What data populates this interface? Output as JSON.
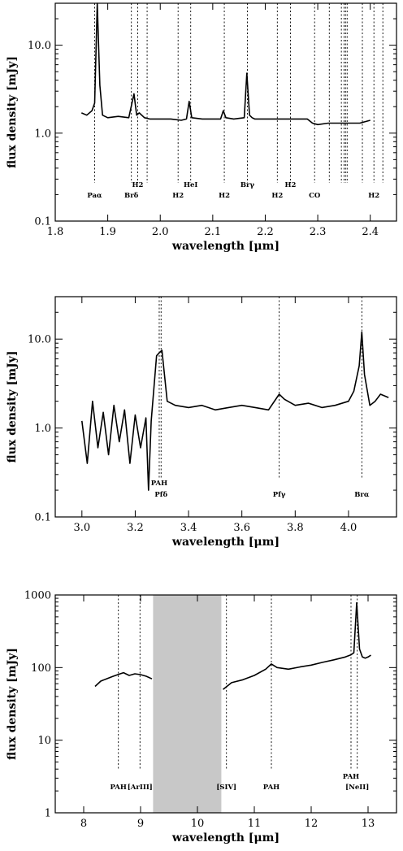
{
  "chart_data": [
    {
      "type": "line",
      "xlabel": "wavelength [μm]",
      "ylabel": "flux density [mJy]",
      "xlim": [
        1.8,
        2.45
      ],
      "ylim": [
        0.1,
        30
      ],
      "yscale": "log",
      "xticks": [
        1.8,
        1.9,
        2.0,
        2.1,
        2.2,
        2.3,
        2.4
      ],
      "xtick_labels": [
        "1.8",
        "1.9",
        "2.0",
        "2.1",
        "2.2",
        "2.3",
        "2.4"
      ],
      "yticks": [
        0.1,
        1,
        10
      ],
      "ytick_labels": [
        "0.1",
        "1.0",
        "10.0"
      ],
      "lines": [
        {
          "x": 1.875,
          "label": "Paα",
          "row": 1
        },
        {
          "x": 1.945,
          "label": "Brδ",
          "row": 1
        },
        {
          "x": 1.957,
          "label": "H2",
          "row": 0
        },
        {
          "x": 1.975,
          "label": "",
          "row": 0
        },
        {
          "x": 2.034,
          "label": "H2",
          "row": 1
        },
        {
          "x": 2.058,
          "label": "HeI",
          "row": 0
        },
        {
          "x": 2.122,
          "label": "H2",
          "row": 1
        },
        {
          "x": 2.166,
          "label": "Brγ",
          "row": 0
        },
        {
          "x": 2.223,
          "label": "H2",
          "row": 1
        },
        {
          "x": 2.248,
          "label": "H2",
          "row": 0
        },
        {
          "x": 2.294,
          "label": "CO",
          "row": 1
        },
        {
          "x": 2.322,
          "label": "",
          "row": 0
        },
        {
          "x": 2.345,
          "label": "",
          "row": 0
        },
        {
          "x": 2.35,
          "label": "",
          "row": 0
        },
        {
          "x": 2.353,
          "label": "",
          "row": 0
        },
        {
          "x": 2.356,
          "label": "",
          "row": 0
        },
        {
          "x": 2.385,
          "label": "",
          "row": 0
        },
        {
          "x": 2.407,
          "label": "H2",
          "row": 1
        },
        {
          "x": 2.424,
          "label": "",
          "row": 0
        }
      ],
      "series": [
        {
          "x": [
            1.85,
            1.86,
            1.87,
            1.875,
            1.88,
            1.885,
            1.89,
            1.9,
            1.92,
            1.94,
            1.95,
            1.955,
            1.96,
            1.97,
            1.98,
            2.0,
            2.02,
            2.04,
            2.05,
            2.055,
            2.06,
            2.08,
            2.1,
            2.115,
            2.12,
            2.125,
            2.14,
            2.16,
            2.165,
            2.17,
            2.175,
            2.18,
            2.2,
            2.22,
            2.25,
            2.28,
            2.29,
            2.3,
            2.32,
            2.34,
            2.36,
            2.38,
            2.4
          ],
          "y": [
            1.7,
            1.6,
            1.8,
            2.2,
            30,
            3.5,
            1.6,
            1.5,
            1.55,
            1.5,
            2.8,
            1.6,
            1.7,
            1.5,
            1.45,
            1.45,
            1.45,
            1.4,
            1.45,
            2.3,
            1.5,
            1.45,
            1.45,
            1.45,
            1.8,
            1.5,
            1.45,
            1.5,
            4.8,
            1.6,
            1.5,
            1.45,
            1.45,
            1.45,
            1.45,
            1.45,
            1.3,
            1.25,
            1.3,
            1.3,
            1.3,
            1.3,
            1.4
          ]
        }
      ]
    },
    {
      "type": "line",
      "xlabel": "wavelength [μm]",
      "ylabel": "flux density [mJy]",
      "xlim": [
        2.9,
        4.18
      ],
      "ylim": [
        0.1,
        30
      ],
      "yscale": "log",
      "xticks": [
        3.0,
        3.2,
        3.4,
        3.6,
        3.8,
        4.0
      ],
      "xtick_labels": [
        "3.0",
        "3.2",
        "3.4",
        "3.6",
        "3.8",
        "4.0"
      ],
      "yticks": [
        0.1,
        1,
        10
      ],
      "ytick_labels": [
        "0.1",
        "1.0",
        "10.0"
      ],
      "lines": [
        {
          "x": 3.29,
          "label": "PAH",
          "row": 0
        },
        {
          "x": 3.297,
          "label": "Pfδ",
          "row": 1
        },
        {
          "x": 3.74,
          "label": "Pfγ",
          "row": 1
        },
        {
          "x": 4.05,
          "label": "Brα",
          "row": 1
        }
      ],
      "series": [
        {
          "x": [
            3.0,
            3.02,
            3.04,
            3.06,
            3.08,
            3.1,
            3.12,
            3.14,
            3.16,
            3.18,
            3.2,
            3.22,
            3.24,
            3.25,
            3.26,
            3.28,
            3.29,
            3.3,
            3.32,
            3.35,
            3.4,
            3.45,
            3.5,
            3.55,
            3.6,
            3.65,
            3.7,
            3.74,
            3.76,
            3.8,
            3.85,
            3.9,
            3.95,
            4.0,
            4.02,
            4.04,
            4.05,
            4.06,
            4.08,
            4.1,
            4.12,
            4.15
          ],
          "y": [
            1.2,
            0.4,
            2.0,
            0.6,
            1.5,
            0.5,
            1.8,
            0.7,
            1.6,
            0.4,
            1.4,
            0.6,
            1.3,
            0.2,
            1.2,
            6.5,
            7.0,
            7.5,
            2.0,
            1.8,
            1.7,
            1.8,
            1.6,
            1.7,
            1.8,
            1.7,
            1.6,
            2.4,
            2.1,
            1.8,
            1.9,
            1.7,
            1.8,
            2.0,
            2.6,
            5.0,
            12.0,
            4.0,
            1.8,
            2.0,
            2.4,
            2.2
          ]
        }
      ]
    },
    {
      "type": "line",
      "xlabel": "wavelength [μm]",
      "ylabel": "flux density [mJy]",
      "xlim": [
        7.5,
        13.5
      ],
      "ylim": [
        1,
        1000
      ],
      "yscale": "log",
      "xticks": [
        8,
        9,
        10,
        11,
        12,
        13
      ],
      "xtick_labels": [
        "8",
        "9",
        "10",
        "11",
        "12",
        "13"
      ],
      "yticks": [
        1,
        10,
        100,
        1000
      ],
      "ytick_labels": [
        "1",
        "10",
        "100",
        "1000"
      ],
      "shaded_band": [
        9.22,
        10.42
      ],
      "lines": [
        {
          "x": 8.61,
          "label": "PAH",
          "row": 0
        },
        {
          "x": 8.99,
          "label": "[ArIII]",
          "row": 0
        },
        {
          "x": 10.51,
          "label": "[SIV]",
          "row": 0
        },
        {
          "x": 11.3,
          "label": "PAH",
          "row": 0
        },
        {
          "x": 12.7,
          "label": "PAH",
          "row": -1
        },
        {
          "x": 12.81,
          "label": "[NeII]",
          "row": 0
        }
      ],
      "series": [
        {
          "x": [
            8.2,
            8.3,
            8.4,
            8.5,
            8.6,
            8.7,
            8.8,
            8.9,
            9.0,
            9.1,
            9.2
          ],
          "y": [
            55,
            65,
            70,
            75,
            80,
            85,
            78,
            82,
            80,
            76,
            70
          ]
        },
        {
          "x": [
            10.45,
            10.6,
            10.8,
            11.0,
            11.2,
            11.3,
            11.4,
            11.6,
            11.8,
            12.0,
            12.2,
            12.4,
            12.6,
            12.7,
            12.75,
            12.8,
            12.85,
            12.9,
            12.95,
            13.0,
            13.05
          ],
          "y": [
            50,
            62,
            68,
            78,
            95,
            112,
            100,
            95,
            102,
            108,
            118,
            128,
            140,
            150,
            160,
            780,
            180,
            140,
            135,
            140,
            148
          ]
        }
      ]
    }
  ]
}
